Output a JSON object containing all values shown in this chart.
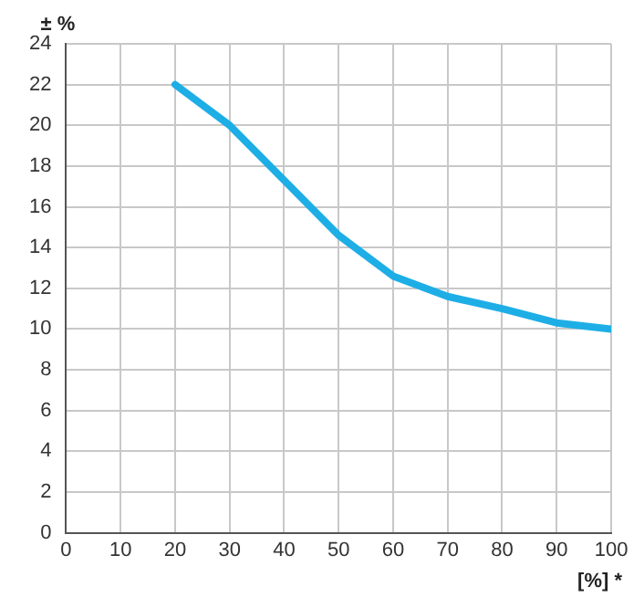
{
  "chart_data": {
    "type": "line",
    "xlabel": "[%] *",
    "ylabel": "± %",
    "x": [
      20,
      30,
      40,
      50,
      60,
      70,
      80,
      90,
      100
    ],
    "series": [
      {
        "color": "#1eaee6",
        "values": [
          22,
          20,
          17.3,
          14.6,
          12.6,
          11.6,
          11,
          10.3,
          10
        ]
      }
    ],
    "xlim": [
      0,
      100
    ],
    "xticks": [
      0,
      10,
      20,
      30,
      40,
      50,
      60,
      70,
      80,
      90,
      100
    ],
    "ylim": [
      0,
      24
    ],
    "yticks": [
      0,
      2,
      4,
      6,
      8,
      10,
      12,
      14,
      16,
      18,
      20,
      22,
      24
    ],
    "grid": true,
    "legend": false,
    "marker": "none",
    "line_style": "solid"
  }
}
